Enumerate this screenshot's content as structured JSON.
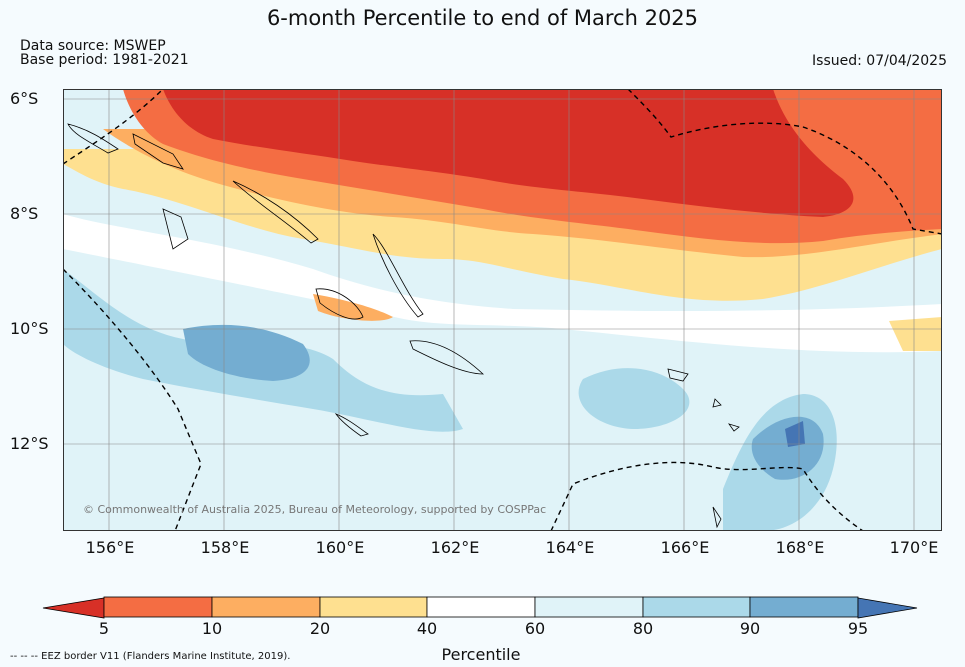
{
  "title": "6-month Percentile to end of March 2025",
  "data_source": "Data source: MSWEP",
  "base_period": "Base period: 1981-2021",
  "issued": "Issued: 07/04/2025",
  "lat_labels": [
    "6°S",
    "8°S",
    "10°S",
    "12°S"
  ],
  "lon_labels": [
    "156°E",
    "158°E",
    "160°E",
    "162°E",
    "164°E",
    "166°E",
    "168°E",
    "170°E"
  ],
  "copyright": "© Commonwealth of Australia 2025, Bureau of Meteorology, supported by COSPPac",
  "colorbar": {
    "label": "Percentile",
    "ticks": [
      "5",
      "10",
      "20",
      "40",
      "60",
      "80",
      "90",
      "95"
    ],
    "colors": [
      "#d73027",
      "#f46d43",
      "#fdae61",
      "#fee090",
      "#ffffff",
      "#e0f3f8",
      "#abd9e9",
      "#74add1",
      "#4575b4"
    ]
  },
  "eez_note": "-- -- -- EEZ border V11 (Flanders Marine Institute, 2019)."
}
